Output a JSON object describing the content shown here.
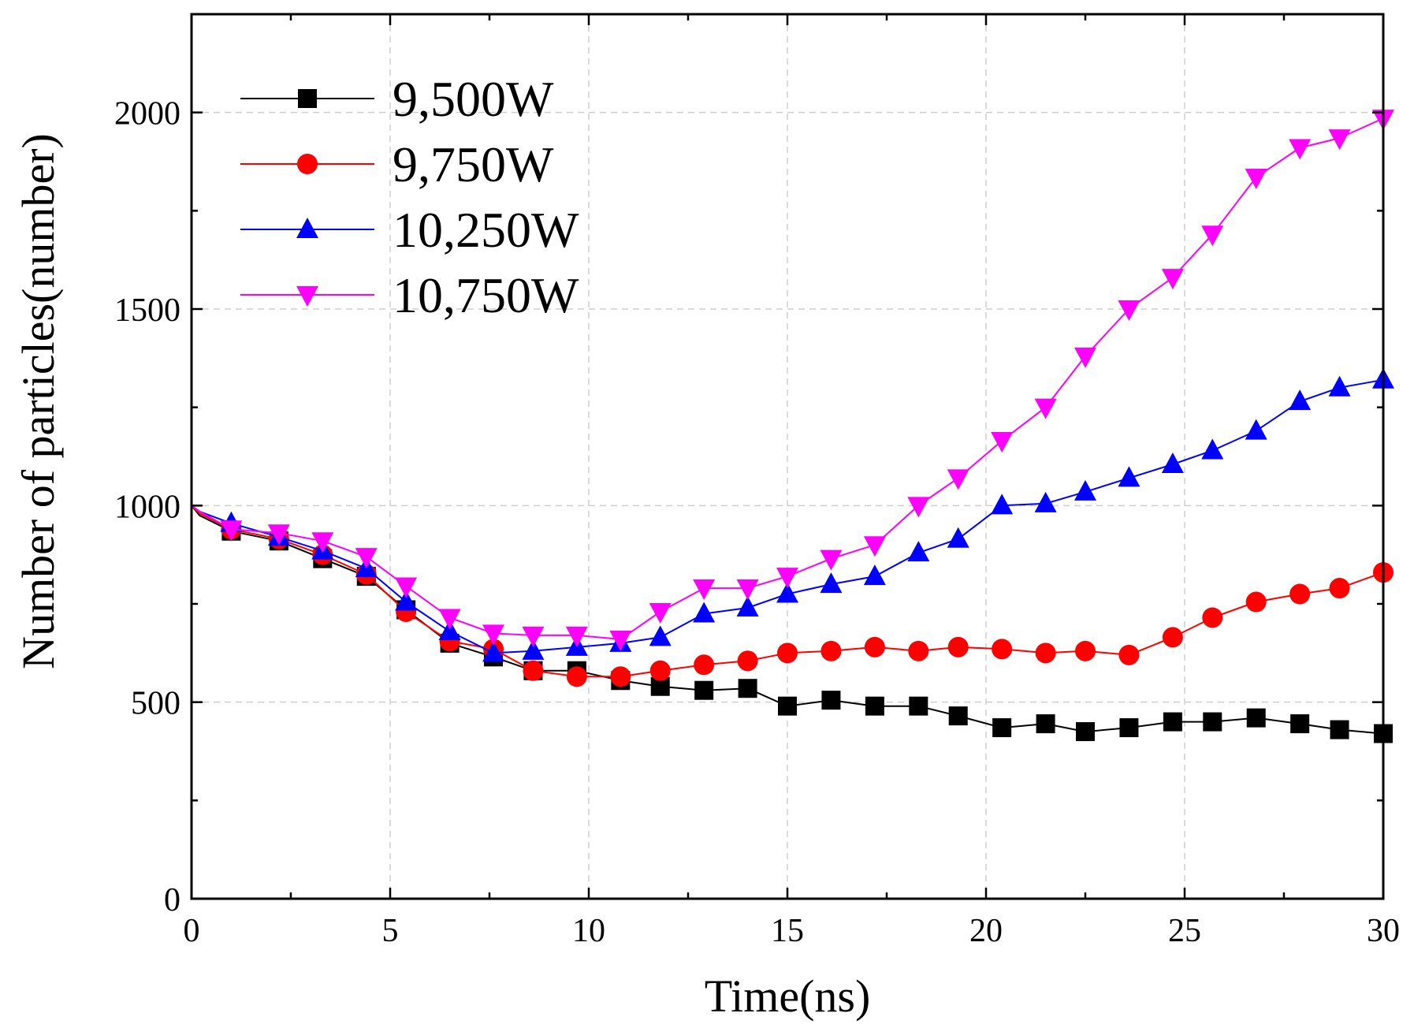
{
  "chart_data": {
    "type": "line",
    "title": "",
    "xlabel": "Time(ns)",
    "ylabel": "Number of particles(number)",
    "xlim": [
      0,
      30
    ],
    "ylim": [
      0,
      2250
    ],
    "xticks": [
      0,
      5,
      10,
      15,
      20,
      25,
      30
    ],
    "yticks": [
      0,
      500,
      1000,
      1500,
      2000
    ],
    "grid": true,
    "legend_position": "top-left",
    "series": [
      {
        "name": "9,500W",
        "color": "#000000",
        "marker": "square",
        "x": [
          0,
          0.2,
          1.0,
          2.2,
          3.3,
          4.4,
          5.4,
          6.5,
          7.6,
          8.6,
          9.7,
          10.8,
          11.8,
          12.9,
          14.0,
          15.0,
          16.1,
          17.2,
          18.3,
          19.3,
          20.4,
          21.5,
          22.5,
          23.6,
          24.7,
          25.7,
          26.8,
          27.9,
          28.9,
          30.0
        ],
        "y": [
          1000,
          975,
          935,
          910,
          865,
          820,
          735,
          650,
          615,
          580,
          580,
          555,
          540,
          530,
          535,
          490,
          505,
          490,
          490,
          465,
          435,
          445,
          425,
          435,
          450,
          450,
          460,
          445,
          430,
          420
        ],
        "marker_x": [
          1.0,
          2.2,
          3.3,
          4.4,
          5.4,
          6.5,
          7.6,
          8.6,
          9.7,
          10.8,
          11.8,
          12.9,
          14.0,
          15.0,
          16.1,
          17.2,
          18.3,
          19.3,
          20.4,
          21.5,
          22.5,
          23.6,
          24.7,
          25.7,
          26.8,
          27.9,
          28.9,
          30.0
        ],
        "marker_y": [
          935,
          910,
          865,
          820,
          735,
          650,
          615,
          580,
          580,
          555,
          540,
          530,
          535,
          490,
          505,
          490,
          490,
          465,
          435,
          445,
          425,
          435,
          450,
          450,
          460,
          445,
          430,
          420
        ]
      },
      {
        "name": "9,750W",
        "color": "#ff0000",
        "marker": "circle",
        "x": [
          0,
          0.2,
          1.0,
          2.2,
          3.3,
          4.4,
          5.4,
          6.5,
          7.6,
          8.6,
          9.7,
          10.8,
          11.8,
          12.9,
          14.0,
          15.0,
          16.1,
          17.2,
          18.3,
          19.3,
          20.4,
          21.5,
          22.5,
          23.6,
          24.7,
          25.7,
          26.8,
          27.9,
          28.9,
          30.0
        ],
        "y": [
          1000,
          980,
          940,
          915,
          875,
          825,
          730,
          655,
          635,
          580,
          565,
          565,
          580,
          595,
          605,
          625,
          630,
          640,
          630,
          640,
          635,
          625,
          630,
          620,
          665,
          715,
          755,
          775,
          790,
          830
        ],
        "marker_x": [
          1.0,
          2.2,
          3.3,
          4.4,
          5.4,
          6.5,
          7.6,
          8.6,
          9.7,
          10.8,
          11.8,
          12.9,
          14.0,
          15.0,
          16.1,
          17.2,
          18.3,
          19.3,
          20.4,
          21.5,
          22.5,
          23.6,
          24.7,
          25.7,
          26.8,
          27.9,
          28.9,
          30.0
        ],
        "marker_y": [
          940,
          915,
          875,
          825,
          730,
          655,
          635,
          580,
          565,
          565,
          580,
          595,
          605,
          625,
          630,
          640,
          630,
          640,
          635,
          625,
          630,
          620,
          665,
          715,
          755,
          775,
          790,
          830
        ]
      },
      {
        "name": "10,250W",
        "color": "#0000ff",
        "marker": "triangle-up",
        "x": [
          0,
          0.2,
          1.0,
          2.2,
          3.3,
          4.4,
          5.4,
          6.5,
          7.6,
          8.6,
          9.7,
          10.8,
          11.8,
          12.9,
          14.0,
          15.0,
          16.1,
          17.2,
          18.3,
          19.3,
          20.4,
          21.5,
          22.5,
          23.6,
          24.7,
          25.7,
          26.8,
          27.9,
          28.9,
          30.0
        ],
        "y": [
          1000,
          985,
          955,
          920,
          885,
          840,
          755,
          680,
          625,
          630,
          640,
          650,
          665,
          725,
          740,
          775,
          800,
          820,
          880,
          915,
          1000,
          1005,
          1035,
          1070,
          1105,
          1140,
          1190,
          1265,
          1300,
          1320
        ],
        "marker_x": [
          1.0,
          2.2,
          3.3,
          4.4,
          5.4,
          6.5,
          7.6,
          8.6,
          9.7,
          10.8,
          11.8,
          12.9,
          14.0,
          15.0,
          16.1,
          17.2,
          18.3,
          19.3,
          20.4,
          21.5,
          22.5,
          23.6,
          24.7,
          25.7,
          26.8,
          27.9,
          28.9,
          30.0
        ],
        "marker_y": [
          955,
          920,
          885,
          840,
          755,
          680,
          625,
          630,
          640,
          650,
          665,
          725,
          740,
          775,
          800,
          820,
          880,
          915,
          1000,
          1005,
          1035,
          1070,
          1105,
          1140,
          1190,
          1265,
          1300,
          1320
        ]
      },
      {
        "name": "10,750W",
        "color": "#ff00ff",
        "marker": "triangle-down",
        "x": [
          0,
          0.2,
          1.0,
          2.2,
          3.3,
          4.4,
          5.4,
          6.5,
          7.6,
          8.6,
          9.7,
          10.8,
          11.8,
          12.9,
          14.0,
          15.0,
          16.1,
          17.2,
          18.3,
          19.3,
          20.4,
          21.5,
          22.5,
          23.6,
          24.7,
          25.7,
          26.8,
          27.9,
          28.9,
          30.0
        ],
        "y": [
          1000,
          985,
          940,
          930,
          910,
          870,
          795,
          715,
          675,
          670,
          670,
          660,
          730,
          790,
          790,
          820,
          865,
          900,
          1000,
          1070,
          1165,
          1250,
          1380,
          1500,
          1580,
          1690,
          1835,
          1910,
          1935,
          1985
        ],
        "marker_x": [
          1.0,
          2.2,
          3.3,
          4.4,
          5.4,
          6.5,
          7.6,
          8.6,
          9.7,
          10.8,
          11.8,
          12.9,
          14.0,
          15.0,
          16.1,
          17.2,
          18.3,
          19.3,
          20.4,
          21.5,
          22.5,
          23.6,
          24.7,
          25.7,
          26.8,
          27.9,
          28.9,
          30.0
        ],
        "marker_y": [
          940,
          930,
          910,
          870,
          795,
          715,
          675,
          670,
          670,
          660,
          730,
          790,
          790,
          820,
          865,
          900,
          1000,
          1070,
          1165,
          1250,
          1380,
          1500,
          1580,
          1690,
          1835,
          1910,
          1935,
          1985
        ]
      }
    ]
  }
}
